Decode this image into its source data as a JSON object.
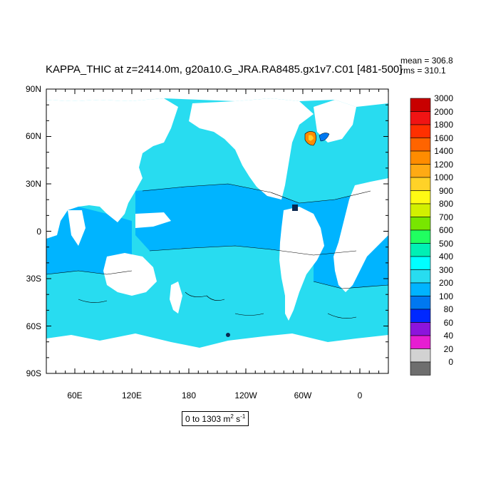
{
  "header": {
    "title": "KAPPA_THIC at z=2414.0m, g20a10.G_JRA.RA8485.gx1v7.C01 [481-500]",
    "mean": "mean = 306.8",
    "rms": "rms = 310.1"
  },
  "axes": {
    "y_labels": [
      "90N",
      "60N",
      "30N",
      "0",
      "30S",
      "60S",
      "90S"
    ],
    "x_labels": [
      "60E",
      "120E",
      "180",
      "120W",
      "60W",
      "0"
    ]
  },
  "units": {
    "prefix": "0 to 1303 m",
    "sup1": "2",
    "mid": " s",
    "sup2": "-1"
  },
  "legend": {
    "levels": [
      "3000",
      "2000",
      "1800",
      "1600",
      "1400",
      "1200",
      "1000",
      "900",
      "800",
      "700",
      "600",
      "500",
      "400",
      "300",
      "200",
      "100",
      "80",
      "60",
      "40",
      "20",
      "0"
    ],
    "colors": [
      "#c80000",
      "#f01414",
      "#ff3000",
      "#ff6400",
      "#ff8c00",
      "#ffaa14",
      "#ffd228",
      "#fffa14",
      "#d2f000",
      "#78e600",
      "#20ff60",
      "#00f0b4",
      "#00ffff",
      "#28dcf0",
      "#00b4ff",
      "#0078f0",
      "#0028ff",
      "#8c14dc",
      "#e61ed2",
      "#d2d2d2",
      "#6e6e6e"
    ]
  },
  "map_colors": {
    "land": "#ffffff",
    "ocean_300_400": "#28dcf0",
    "ocean_200_300": "#00b4ff",
    "ocean_100_200": "#0078f0",
    "hotspot_orange": "#ff8c00",
    "hotspot_yellow": "#ffd228"
  }
}
